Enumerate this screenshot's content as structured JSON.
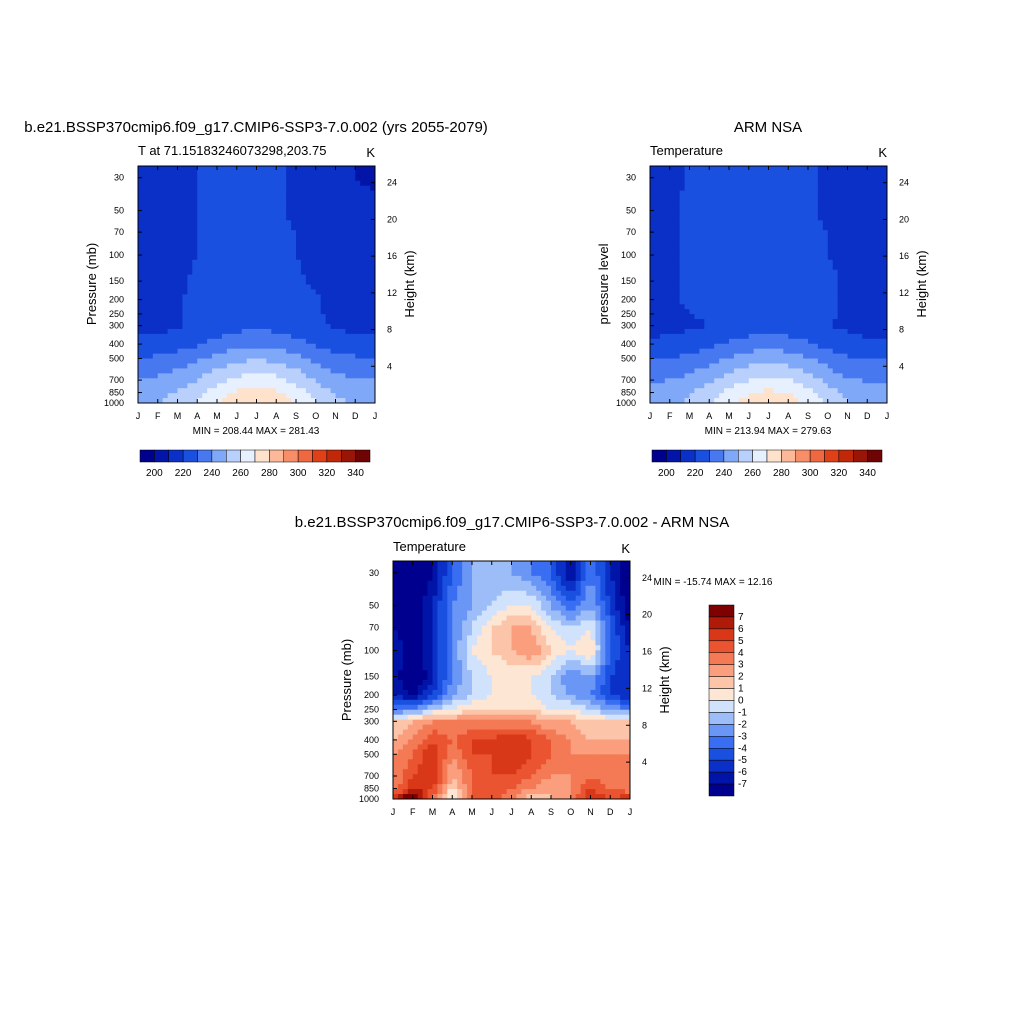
{
  "panels": {
    "model": {
      "title": "b.e21.BSSP370cmip6.f09_g17.CMIP6-SSP3-7.0.002 (yrs 2055-2079)",
      "left_label": "T at 71.15183246073298,203.75",
      "right_label": "K",
      "ylabel_left": "Pressure (mb)",
      "ylabel_right": "Height (km)",
      "minmax": "MIN = 208.44 MAX = 281.43"
    },
    "obs": {
      "title": "ARM NSA",
      "left_label": "Temperature",
      "right_label": "K",
      "ylabel_left": "pressure level",
      "ylabel_right": "Height (km)",
      "minmax": "MIN = 213.94 MAX = 279.63"
    },
    "diff": {
      "title": "b.e21.BSSP370cmip6.f09_g17.CMIP6-SSP3-7.0.002 - ARM NSA",
      "left_label": "Temperature",
      "right_label": "K",
      "ylabel_left": "Pressure (mb)",
      "ylabel_right": "Height (km)",
      "minmax": "MIN = -15.74 MAX =  12.16"
    }
  },
  "colors": {
    "temp_scale": [
      "#00008e",
      "#0315a8",
      "#0a30c8",
      "#1a50e0",
      "#4878f0",
      "#80a8f8",
      "#b8d0fb",
      "#e6f0fe",
      "#fee2cc",
      "#fcb898",
      "#f88e68",
      "#f06840",
      "#e04018",
      "#c02808",
      "#991508",
      "#700404"
    ],
    "diff_scale": [
      "#00008e",
      "#0015a8",
      "#0a30c8",
      "#1a50e0",
      "#3a6ef2",
      "#6a96f6",
      "#9cbdf8",
      "#d0e2fc",
      "#fde6d4",
      "#fcc4a8",
      "#fa9e7e",
      "#f47a56",
      "#ea5430",
      "#d83818",
      "#b01a08",
      "#7f0000"
    ]
  },
  "chart_data": [
    {
      "type": "heatmap",
      "name": "model",
      "x": [
        "J",
        "F",
        "M",
        "A",
        "M",
        "J",
        "J",
        "A",
        "S",
        "O",
        "N",
        "D",
        "J"
      ],
      "y_pressure_ticks": [
        30,
        50,
        70,
        100,
        150,
        200,
        250,
        300,
        400,
        500,
        700,
        850,
        1000
      ],
      "y_height_ticks_km": [
        4,
        8,
        12,
        16,
        20,
        24
      ],
      "colorbar_ticks": [
        200,
        220,
        240,
        260,
        280,
        300,
        320,
        340
      ],
      "colorbar_levels": [
        195,
        200,
        210,
        220,
        230,
        240,
        250,
        260,
        270,
        280,
        290,
        300,
        310,
        320,
        330,
        340,
        345
      ],
      "range": [
        208.44,
        281.43
      ],
      "levels_hpa": [
        1000,
        850,
        700,
        500,
        400,
        300,
        250,
        200,
        150,
        100,
        70,
        50,
        30
      ],
      "grid": [
        [
          248,
          250,
          254,
          262,
          270,
          277,
          280,
          278,
          270,
          260,
          252,
          249,
          248
        ],
        [
          245,
          247,
          251,
          257,
          264,
          271,
          274,
          272,
          265,
          256,
          249,
          246,
          245
        ],
        [
          240,
          242,
          245,
          250,
          257,
          262,
          265,
          263,
          257,
          249,
          243,
          241,
          240
        ],
        [
          230,
          232,
          234,
          238,
          243,
          247,
          249,
          247,
          243,
          237,
          233,
          231,
          230
        ],
        [
          223,
          224,
          226,
          229,
          233,
          236,
          237,
          236,
          233,
          229,
          225,
          224,
          223
        ],
        [
          216,
          217,
          219,
          222,
          225,
          227,
          228,
          227,
          225,
          222,
          219,
          217,
          216
        ],
        [
          215,
          216,
          219,
          222,
          223,
          224,
          224,
          224,
          223,
          221,
          218,
          216,
          215
        ],
        [
          215,
          216,
          219,
          222,
          223,
          223,
          223,
          223,
          222,
          221,
          218,
          216,
          215
        ],
        [
          214,
          215,
          219,
          221,
          222,
          222,
          222,
          222,
          221,
          219,
          217,
          215,
          214
        ],
        [
          213,
          214,
          218,
          220,
          221,
          221,
          221,
          221,
          220,
          218,
          216,
          214,
          213
        ],
        [
          212,
          214,
          218,
          220,
          221,
          221,
          221,
          221,
          220,
          217,
          215,
          213,
          212
        ],
        [
          211,
          213,
          218,
          220,
          221,
          221,
          221,
          221,
          219,
          216,
          214,
          212,
          211
        ],
        [
          210,
          213,
          218,
          220,
          221,
          221,
          221,
          221,
          219,
          215,
          213,
          210,
          209
        ]
      ]
    },
    {
      "type": "heatmap",
      "name": "obs",
      "x": [
        "J",
        "F",
        "M",
        "A",
        "M",
        "J",
        "J",
        "A",
        "S",
        "O",
        "N",
        "D",
        "J"
      ],
      "y_pressure_ticks": [
        30,
        50,
        70,
        100,
        150,
        200,
        250,
        300,
        400,
        500,
        700,
        850,
        1000
      ],
      "y_height_ticks_km": [
        4,
        8,
        12,
        16,
        20,
        24
      ],
      "colorbar_ticks": [
        200,
        220,
        240,
        260,
        280,
        300,
        320,
        340
      ],
      "colorbar_levels": [
        195,
        200,
        210,
        220,
        230,
        240,
        250,
        260,
        270,
        280,
        290,
        300,
        310,
        320,
        330,
        340,
        345
      ],
      "range": [
        213.94,
        279.63
      ],
      "levels_hpa": [
        1000,
        850,
        700,
        500,
        400,
        300,
        250,
        200,
        150,
        100,
        70,
        50,
        30
      ],
      "grid": [
        [
          245,
          247,
          252,
          260,
          268,
          275,
          278,
          276,
          268,
          258,
          250,
          246,
          245
        ],
        [
          243,
          245,
          249,
          255,
          262,
          269,
          272,
          270,
          263,
          254,
          247,
          244,
          243
        ],
        [
          238,
          240,
          243,
          248,
          255,
          260,
          263,
          261,
          255,
          247,
          241,
          239,
          238
        ],
        [
          229,
          230,
          232,
          236,
          241,
          245,
          247,
          245,
          241,
          235,
          231,
          229,
          229
        ],
        [
          222,
          223,
          225,
          228,
          231,
          234,
          236,
          234,
          231,
          227,
          224,
          222,
          222
        ],
        [
          216,
          217,
          218,
          220,
          223,
          225,
          226,
          225,
          223,
          220,
          218,
          216,
          216
        ],
        [
          217,
          218,
          220,
          221,
          222,
          223,
          223,
          223,
          222,
          221,
          219,
          217,
          217
        ],
        [
          218,
          219,
          221,
          222,
          222,
          222,
          222,
          222,
          222,
          221,
          219,
          218,
          218
        ],
        [
          218,
          219,
          221,
          222,
          222,
          222,
          222,
          222,
          222,
          221,
          219,
          218,
          218
        ],
        [
          218,
          219,
          221,
          222,
          222,
          222,
          222,
          222,
          222,
          220,
          219,
          218,
          218
        ],
        [
          218,
          219,
          221,
          222,
          222,
          222,
          222,
          222,
          221,
          220,
          219,
          218,
          218
        ],
        [
          217,
          219,
          221,
          222,
          222,
          222,
          222,
          222,
          221,
          219,
          218,
          217,
          217
        ],
        [
          216,
          218,
          221,
          222,
          222,
          223,
          223,
          222,
          221,
          219,
          217,
          215,
          216
        ]
      ]
    },
    {
      "type": "heatmap",
      "name": "diff",
      "x": [
        "J",
        "F",
        "M",
        "A",
        "M",
        "J",
        "J",
        "A",
        "S",
        "O",
        "N",
        "D",
        "J"
      ],
      "y_pressure_ticks": [
        30,
        50,
        70,
        100,
        150,
        200,
        250,
        300,
        400,
        500,
        700,
        850,
        1000
      ],
      "y_height_ticks_km": [
        4,
        8,
        12,
        16,
        20,
        24
      ],
      "colorbar_ticks": [
        7,
        6,
        5,
        4,
        3,
        2,
        1,
        0,
        -1,
        -2,
        -3,
        -4,
        -5,
        -6,
        -7
      ],
      "colorbar_levels": [
        -8,
        -7,
        -6,
        -5,
        -4,
        -3,
        -2,
        -1,
        0,
        1,
        2,
        3,
        4,
        5,
        6,
        7,
        8
      ],
      "range": [
        -15.74,
        12.16
      ],
      "levels_hpa": [
        1000,
        850,
        700,
        500,
        400,
        300,
        250,
        200,
        150,
        100,
        70,
        50,
        30
      ],
      "grid": [
        [
          6,
          9,
          4,
          -1,
          4,
          5,
          3,
          1,
          2,
          3,
          6,
          5,
          6
        ],
        [
          3,
          6,
          5,
          1,
          4,
          5,
          4,
          3,
          2,
          3,
          5,
          4,
          3
        ],
        [
          3,
          5,
          6,
          2,
          4,
          5,
          5,
          4,
          3,
          3,
          4,
          3,
          3
        ],
        [
          3,
          4,
          6,
          3,
          5,
          5,
          6,
          5,
          4,
          3,
          3,
          3,
          3
        ],
        [
          2,
          3,
          5,
          4,
          5,
          5,
          6,
          5,
          4,
          3,
          2,
          2,
          2
        ],
        [
          1,
          2,
          3,
          3,
          3,
          3,
          3,
          3,
          2,
          2,
          1,
          1,
          1
        ],
        [
          -3,
          -3,
          -1,
          0,
          1,
          1,
          1,
          1,
          0,
          0,
          -1,
          -2,
          -3
        ],
        [
          -6,
          -7,
          -5,
          -2,
          -1,
          0,
          0,
          0,
          -1,
          -2,
          -3,
          -5,
          -6
        ],
        [
          -6,
          -9,
          -6,
          -3,
          -1,
          0,
          0,
          0,
          -1,
          -3,
          -2,
          -5,
          -6
        ],
        [
          -6,
          -8,
          -6,
          -3,
          0,
          1,
          2,
          3,
          1,
          0,
          1,
          -4,
          -6
        ],
        [
          -7,
          -8,
          -6,
          -3,
          -1,
          1,
          2,
          2,
          0,
          -1,
          0,
          -4,
          -7
        ],
        [
          -8,
          -8,
          -6,
          -3,
          -2,
          -1,
          0,
          0,
          -2,
          -4,
          -2,
          -5,
          -8
        ],
        [
          -8,
          -9,
          -7,
          -4,
          -2,
          -2,
          -2,
          -3,
          -4,
          -7,
          -3,
          -6,
          -8
        ]
      ]
    }
  ]
}
